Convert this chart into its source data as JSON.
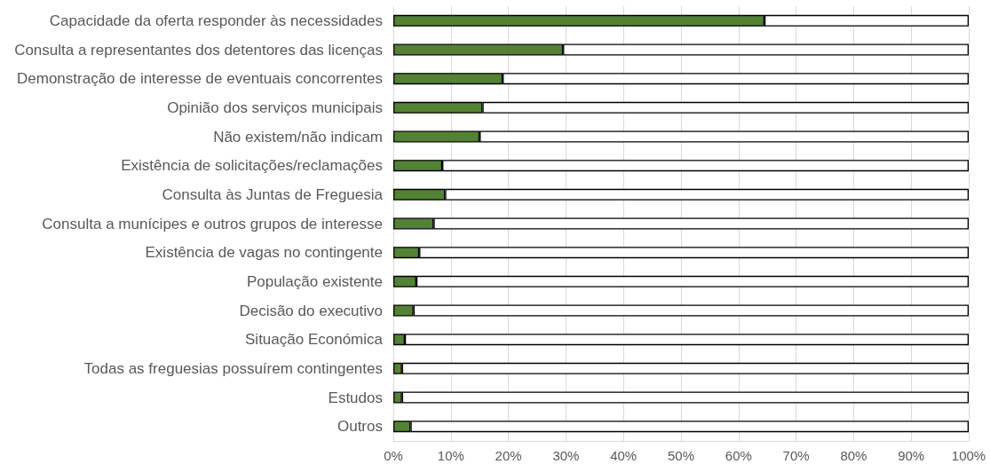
{
  "chart_data": {
    "type": "bar",
    "orientation": "horizontal",
    "stacked": true,
    "categories": [
      "Capacidade da oferta responder às necessidades",
      "Consulta a representantes dos detentores das licenças",
      "Demonstração de interesse de eventuais concorrentes",
      "Opinião dos serviços municipais",
      "Não existem/não indicam",
      "Existência de solicitações/reclamações",
      "Consulta às Juntas de Freguesia",
      "Consulta a munícipes e outros grupos de interesse",
      "Existência de vagas no contingente",
      "População existente",
      "Decisão do executivo",
      "Situação Económica",
      "Todas as freguesias possuírem contingentes",
      "Estudos",
      "Outros"
    ],
    "series": [
      {
        "color": "#548235",
        "values": [
          64.5,
          29.5,
          19,
          15.5,
          15,
          8.5,
          9,
          7,
          4.5,
          4,
          3.5,
          2,
          1.5,
          1.5,
          3
        ]
      },
      {
        "color": "#ffffff",
        "values": [
          35.5,
          70.5,
          81,
          84.5,
          85,
          91.5,
          91,
          93,
          95.5,
          96,
          96.5,
          98,
          98.5,
          98.5,
          97
        ]
      }
    ],
    "xlim": [
      0,
      100
    ],
    "xticks": [
      {
        "value": 0,
        "label": "0%"
      },
      {
        "value": 10,
        "label": "10%"
      },
      {
        "value": 20,
        "label": "20%"
      },
      {
        "value": 30,
        "label": "30%"
      },
      {
        "value": 40,
        "label": "40%"
      },
      {
        "value": 50,
        "label": "50%"
      },
      {
        "value": 60,
        "label": "60%"
      },
      {
        "value": 70,
        "label": "70%"
      },
      {
        "value": 80,
        "label": "80%"
      },
      {
        "value": 90,
        "label": "90%"
      },
      {
        "value": 100,
        "label": "100%"
      }
    ],
    "grid": "x"
  }
}
